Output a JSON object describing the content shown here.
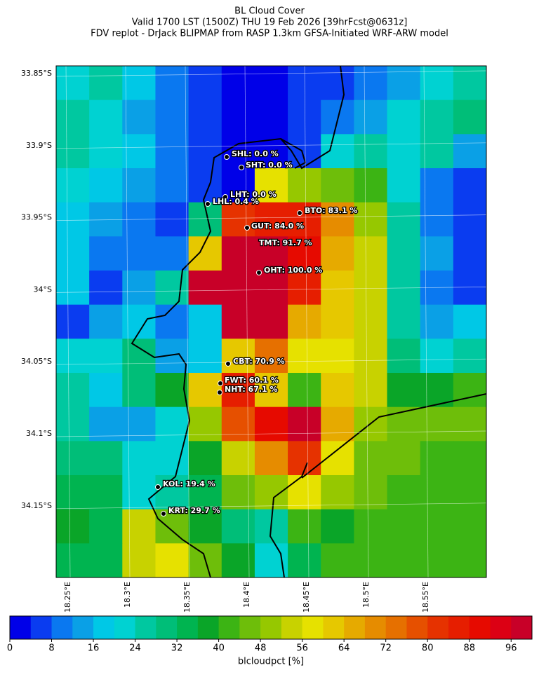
{
  "header": {
    "title": "BL Cloud Cover",
    "subtitle": "Valid 1700 LST (1500Z) THU 19 Feb 2026 [39hrFcst@0631z]",
    "source": "FDV replot - DrJack BLIPMAP from RASP 1.3km GFSA-Initiated WRF-ARW model"
  },
  "map": {
    "lat_ticks": [
      {
        "value": 33.85,
        "label": "33.85°S"
      },
      {
        "value": 33.9,
        "label": "33.9°S"
      },
      {
        "value": 33.95,
        "label": "33.95°S"
      },
      {
        "value": 34,
        "label": "34°S"
      },
      {
        "value": 34.05,
        "label": "34.05°S"
      },
      {
        "value": 34.1,
        "label": "34.1°S"
      },
      {
        "value": 34.15,
        "label": "34.15°S"
      }
    ],
    "lon_ticks": [
      {
        "value": 18.25,
        "label": "18.25°E"
      },
      {
        "value": 18.3,
        "label": "18.3°E"
      },
      {
        "value": 18.35,
        "label": "18.35°E"
      },
      {
        "value": 18.4,
        "label": "18.4°E"
      },
      {
        "value": 18.45,
        "label": "18.45°E"
      },
      {
        "value": 18.5,
        "label": "18.5°E"
      },
      {
        "value": 18.55,
        "label": "18.55°E"
      }
    ],
    "grid": [
      [
        22,
        24,
        18,
        8,
        4,
        2,
        2,
        4,
        6,
        10,
        12,
        22,
        26
      ],
      [
        26,
        22,
        14,
        8,
        4,
        2,
        2,
        4,
        10,
        12,
        20,
        26,
        30
      ],
      [
        26,
        22,
        18,
        10,
        4,
        2,
        2,
        6,
        20,
        24,
        22,
        26,
        14
      ],
      [
        20,
        18,
        14,
        10,
        4,
        2,
        58,
        50,
        46,
        40,
        22,
        10,
        6
      ],
      [
        18,
        14,
        10,
        6,
        30,
        80,
        86,
        84,
        70,
        50,
        24,
        10,
        4
      ],
      [
        16,
        10,
        8,
        10,
        60,
        96,
        98,
        90,
        66,
        52,
        26,
        12,
        4
      ],
      [
        18,
        4,
        14,
        26,
        98,
        98,
        98,
        84,
        62,
        52,
        24,
        10,
        6
      ],
      [
        6,
        14,
        18,
        8,
        18,
        98,
        96,
        66,
        60,
        52,
        24,
        14,
        18
      ],
      [
        22,
        22,
        30,
        12,
        18,
        60,
        74,
        58,
        58,
        52,
        28,
        20,
        24
      ],
      [
        24,
        18,
        30,
        36,
        60,
        84,
        60,
        40,
        60,
        52,
        38,
        36,
        40
      ],
      [
        26,
        12,
        14,
        20,
        50,
        76,
        90,
        96,
        64,
        48,
        46,
        46,
        46
      ],
      [
        28,
        28,
        22,
        20,
        38,
        54,
        70,
        80,
        56,
        46,
        46,
        40,
        40
      ],
      [
        34,
        32,
        22,
        26,
        34,
        44,
        50,
        56,
        50,
        46,
        42,
        40,
        40
      ],
      [
        38,
        34,
        52,
        46,
        36,
        30,
        26,
        40,
        38,
        40,
        40,
        40,
        40
      ],
      [
        34,
        34,
        54,
        58,
        46,
        36,
        22,
        32,
        40,
        40,
        40,
        40,
        40
      ]
    ],
    "stations": [
      {
        "label": "SHL: 0.0 %"
      },
      {
        "label": "SHT: 0.0 %"
      },
      {
        "label": "LHT: 0.0 %"
      },
      {
        "label": "LHL: 0.4 %"
      },
      {
        "label": "BTO: 83.1 %"
      },
      {
        "label": "GUT: 84.0 %"
      },
      {
        "label": "TMT: 91.7 %"
      },
      {
        "label": "OHT: 100.0 %"
      },
      {
        "label": "CBT: 70.9 %"
      },
      {
        "label": "FWT: 60.1 %"
      },
      {
        "label": "NHT: 67.1 %"
      },
      {
        "label": "KOL: 19.4 %"
      },
      {
        "label": "KRT: 29.7 %"
      }
    ]
  },
  "colorbar": {
    "label": "blcloudpct [%]",
    "lim": [
      0,
      100
    ],
    "step": 4,
    "ticks": [
      0,
      8,
      16,
      24,
      32,
      40,
      48,
      56,
      64,
      72,
      80,
      88,
      96
    ],
    "colors": [
      "#0000e8",
      "#0a3cf0",
      "#0a78f0",
      "#0aa0e6",
      "#00c8e6",
      "#00d2d2",
      "#00c8a0",
      "#00be78",
      "#00b450",
      "#0aa528",
      "#3cb414",
      "#6ebe0a",
      "#96c800",
      "#c8d200",
      "#e6e100",
      "#e6c800",
      "#e6aa00",
      "#e68c00",
      "#e67000",
      "#e65000",
      "#e63200",
      "#e61e00",
      "#e60a00",
      "#dc0014",
      "#c80028"
    ]
  }
}
